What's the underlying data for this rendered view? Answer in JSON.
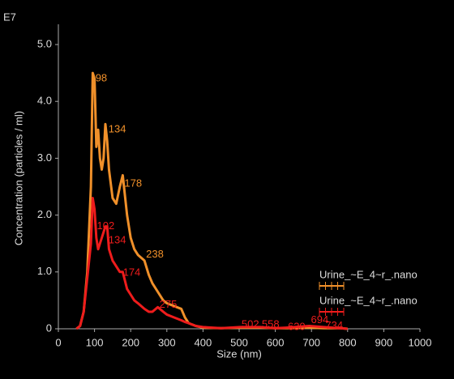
{
  "chart_data": {
    "type": "line",
    "x_label": "Size (nm)",
    "y_label": "Concentration (particles / ml)",
    "y_multiplier": "E7",
    "x": [
      50,
      60,
      70,
      80,
      90,
      95,
      100,
      105,
      110,
      115,
      120,
      125,
      130,
      135,
      140,
      150,
      160,
      170,
      178,
      190,
      200,
      210,
      220,
      238,
      250,
      260,
      275,
      290,
      300,
      320,
      340,
      350,
      360,
      380,
      400,
      450,
      502,
      558,
      600,
      630,
      694,
      734,
      780,
      800
    ],
    "series": [
      {
        "name": "Urine_~E_4~r_.nano",
        "color": "#f0902a",
        "values": [
          0,
          0.05,
          0.3,
          1.0,
          2.5,
          4.5,
          4.4,
          3.2,
          3.5,
          3.0,
          2.8,
          3.0,
          3.6,
          3.3,
          2.8,
          2.3,
          2.2,
          2.5,
          2.7,
          2.0,
          1.6,
          1.4,
          1.3,
          1.2,
          0.95,
          0.8,
          0.65,
          0.5,
          0.45,
          0.4,
          0.35,
          0.2,
          0.1,
          0.05,
          0.02,
          0.01,
          0.02,
          0.02,
          0.01,
          0.01,
          0.02,
          0.01,
          0.01,
          0
        ],
        "peaks": [
          {
            "x": 98,
            "y": 4.4
          },
          {
            "x": 134,
            "y": 3.5
          },
          {
            "x": 178,
            "y": 2.55
          },
          {
            "x": 238,
            "y": 1.3
          }
        ]
      },
      {
        "name": "Urine_~E_4~r_.nano",
        "color": "#ee1c1c",
        "values": [
          0,
          0.05,
          0.3,
          0.9,
          1.5,
          2.3,
          2.1,
          1.6,
          1.4,
          1.5,
          1.6,
          1.7,
          1.8,
          1.8,
          1.4,
          1.2,
          1.1,
          1.0,
          1.0,
          0.7,
          0.6,
          0.5,
          0.45,
          0.35,
          0.3,
          0.3,
          0.38,
          0.3,
          0.25,
          0.2,
          0.15,
          0.12,
          0.1,
          0.05,
          0.03,
          0.01,
          0.03,
          0.03,
          0.01,
          0.02,
          0.05,
          0.03,
          0.01,
          0
        ],
        "peaks": [
          {
            "x": 102,
            "y": 1.8
          },
          {
            "x": 134,
            "y": 1.55
          },
          {
            "x": 174,
            "y": 0.98
          },
          {
            "x": 275,
            "y": 0.42
          },
          {
            "x": 502,
            "y": 0.07
          },
          {
            "x": 558,
            "y": 0.07
          },
          {
            "x": 630,
            "y": 0.03
          },
          {
            "x": 694,
            "y": 0.15
          },
          {
            "x": 734,
            "y": 0.05
          }
        ]
      }
    ],
    "xlim": [
      0,
      1000
    ],
    "xticks": [
      0,
      100,
      200,
      300,
      400,
      500,
      600,
      700,
      800,
      900,
      1000
    ],
    "ylim": [
      0,
      5.3
    ],
    "yticks": [
      0,
      {
        "value": 1,
        "label": "1.0"
      },
      {
        "value": 2,
        "label": "2.0"
      },
      {
        "value": 3,
        "label": "3.0"
      },
      {
        "value": 4,
        "label": "4.0"
      },
      {
        "value": 5,
        "label": "5.0"
      }
    ],
    "legend": "right"
  }
}
